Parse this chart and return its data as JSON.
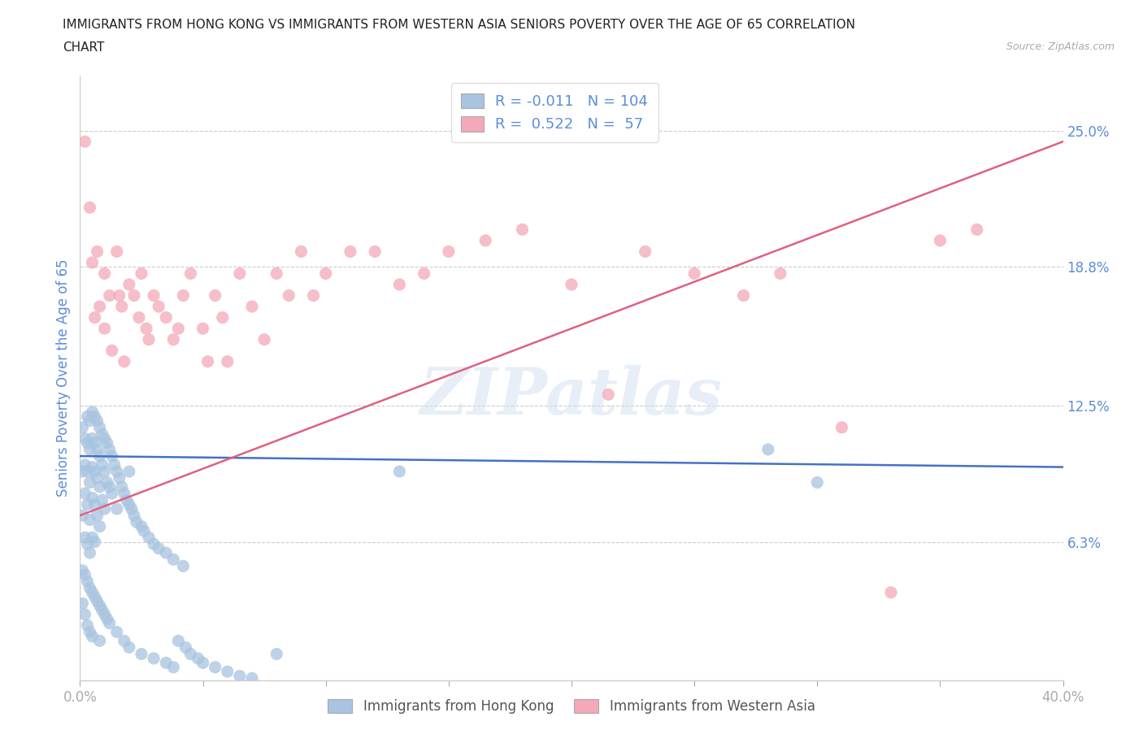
{
  "title_line1": "IMMIGRANTS FROM HONG KONG VS IMMIGRANTS FROM WESTERN ASIA SENIORS POVERTY OVER THE AGE OF 65 CORRELATION",
  "title_line2": "CHART",
  "source": "Source: ZipAtlas.com",
  "ylabel": "Seniors Poverty Over the Age of 65",
  "legend_label1": "Immigrants from Hong Kong",
  "legend_label2": "Immigrants from Western Asia",
  "R1": -0.011,
  "N1": 104,
  "R2": 0.522,
  "N2": 57,
  "xlim": [
    0.0,
    0.4
  ],
  "ylim": [
    0.0,
    0.275
  ],
  "xtick_positions": [
    0.0,
    0.05,
    0.1,
    0.15,
    0.2,
    0.25,
    0.3,
    0.35,
    0.4
  ],
  "xtick_labels": [
    "0.0%",
    "",
    "",
    "",
    "",
    "",
    "",
    "",
    "40.0%"
  ],
  "yticks_right": [
    0.063,
    0.125,
    0.188,
    0.25
  ],
  "ytick_labels_right": [
    "6.3%",
    "12.5%",
    "18.8%",
    "25.0%"
  ],
  "color_hk": "#a8c4e0",
  "color_wa": "#f4a8b8",
  "color_hk_line": "#4472c4",
  "color_wa_line": "#e06080",
  "color_text_blue": "#5b8dd9",
  "color_axis_text": "#888888",
  "background_color": "#ffffff",
  "watermark_text": "ZIPatlas",
  "hk_x": [
    0.001,
    0.001,
    0.001,
    0.002,
    0.002,
    0.002,
    0.002,
    0.003,
    0.003,
    0.003,
    0.003,
    0.003,
    0.004,
    0.004,
    0.004,
    0.004,
    0.004,
    0.005,
    0.005,
    0.005,
    0.005,
    0.005,
    0.006,
    0.006,
    0.006,
    0.006,
    0.006,
    0.007,
    0.007,
    0.007,
    0.007,
    0.008,
    0.008,
    0.008,
    0.008,
    0.009,
    0.009,
    0.009,
    0.01,
    0.01,
    0.01,
    0.011,
    0.011,
    0.012,
    0.012,
    0.013,
    0.013,
    0.014,
    0.015,
    0.015,
    0.016,
    0.017,
    0.018,
    0.019,
    0.02,
    0.02,
    0.021,
    0.022,
    0.023,
    0.025,
    0.026,
    0.028,
    0.03,
    0.032,
    0.035,
    0.038,
    0.042,
    0.001,
    0.001,
    0.002,
    0.002,
    0.003,
    0.003,
    0.004,
    0.004,
    0.005,
    0.005,
    0.006,
    0.007,
    0.008,
    0.008,
    0.009,
    0.01,
    0.011,
    0.012,
    0.015,
    0.018,
    0.02,
    0.025,
    0.03,
    0.035,
    0.038,
    0.04,
    0.043,
    0.045,
    0.048,
    0.05,
    0.055,
    0.06,
    0.065,
    0.07,
    0.08,
    0.13,
    0.28,
    0.3
  ],
  "hk_y": [
    0.115,
    0.095,
    0.075,
    0.11,
    0.098,
    0.085,
    0.065,
    0.12,
    0.108,
    0.095,
    0.08,
    0.062,
    0.118,
    0.105,
    0.09,
    0.073,
    0.058,
    0.122,
    0.11,
    0.097,
    0.083,
    0.065,
    0.12,
    0.108,
    0.095,
    0.08,
    0.063,
    0.118,
    0.105,
    0.092,
    0.075,
    0.115,
    0.102,
    0.088,
    0.07,
    0.112,
    0.098,
    0.082,
    0.11,
    0.095,
    0.078,
    0.108,
    0.09,
    0.105,
    0.088,
    0.102,
    0.085,
    0.098,
    0.095,
    0.078,
    0.092,
    0.088,
    0.085,
    0.082,
    0.08,
    0.095,
    0.078,
    0.075,
    0.072,
    0.07,
    0.068,
    0.065,
    0.062,
    0.06,
    0.058,
    0.055,
    0.052,
    0.05,
    0.035,
    0.048,
    0.03,
    0.045,
    0.025,
    0.042,
    0.022,
    0.04,
    0.02,
    0.038,
    0.036,
    0.034,
    0.018,
    0.032,
    0.03,
    0.028,
    0.026,
    0.022,
    0.018,
    0.015,
    0.012,
    0.01,
    0.008,
    0.006,
    0.018,
    0.015,
    0.012,
    0.01,
    0.008,
    0.006,
    0.004,
    0.002,
    0.001,
    0.012,
    0.095,
    0.105,
    0.09
  ],
  "wa_x": [
    0.002,
    0.004,
    0.005,
    0.006,
    0.007,
    0.008,
    0.01,
    0.01,
    0.012,
    0.013,
    0.015,
    0.016,
    0.017,
    0.018,
    0.02,
    0.022,
    0.024,
    0.025,
    0.027,
    0.028,
    0.03,
    0.032,
    0.035,
    0.038,
    0.04,
    0.042,
    0.045,
    0.05,
    0.052,
    0.055,
    0.058,
    0.06,
    0.065,
    0.07,
    0.075,
    0.08,
    0.085,
    0.09,
    0.095,
    0.1,
    0.11,
    0.12,
    0.13,
    0.14,
    0.15,
    0.165,
    0.18,
    0.2,
    0.215,
    0.23,
    0.25,
    0.27,
    0.285,
    0.31,
    0.33,
    0.35,
    0.365
  ],
  "wa_y": [
    0.245,
    0.215,
    0.19,
    0.165,
    0.195,
    0.17,
    0.185,
    0.16,
    0.175,
    0.15,
    0.195,
    0.175,
    0.17,
    0.145,
    0.18,
    0.175,
    0.165,
    0.185,
    0.16,
    0.155,
    0.175,
    0.17,
    0.165,
    0.155,
    0.16,
    0.175,
    0.185,
    0.16,
    0.145,
    0.175,
    0.165,
    0.145,
    0.185,
    0.17,
    0.155,
    0.185,
    0.175,
    0.195,
    0.175,
    0.185,
    0.195,
    0.195,
    0.18,
    0.185,
    0.195,
    0.2,
    0.205,
    0.18,
    0.13,
    0.195,
    0.185,
    0.175,
    0.185,
    0.115,
    0.04,
    0.2,
    0.205
  ]
}
